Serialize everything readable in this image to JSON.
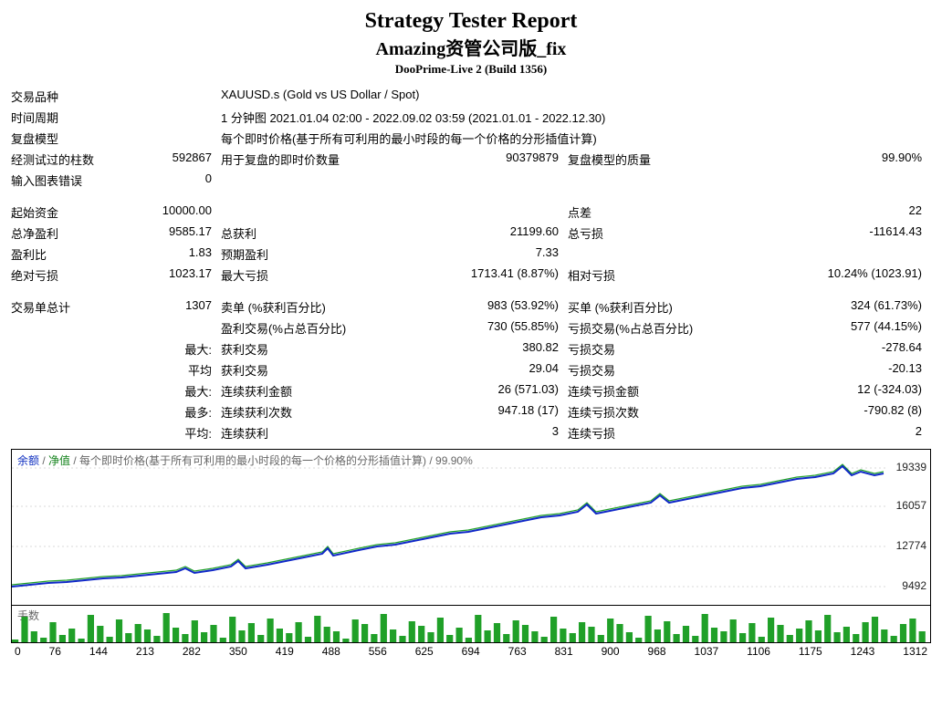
{
  "header": {
    "title": "Strategy Tester Report",
    "subtitle": "Amazing资管公司版_fix",
    "server": "DooPrime-Live 2 (Build 1356)"
  },
  "rows": {
    "symbol_lab": "交易品种",
    "symbol_val": "XAUUSD.s (Gold vs US Dollar / Spot)",
    "period_lab": "时间周期",
    "period_val": "1 分钟图 2021.01.04 02:00 - 2022.09.02 03:59 (2021.01.01 - 2022.12.30)",
    "model_lab": "复盘模型",
    "model_val": "每个即时价格(基于所有可利用的最小时段的每一个价格的分形插值计算)",
    "bars_lab": "经测试过的柱数",
    "bars_val": "592867",
    "ticks_lab": "用于复盘的即时价数量",
    "ticks_val": "90379879",
    "quality_lab": "复盘模型的质量",
    "quality_val": "99.90%",
    "chart_err_lab": "输入图表错误",
    "chart_err_val": "0",
    "init_dep_lab": "起始资金",
    "init_dep_val": "10000.00",
    "spread_lab": "点差",
    "spread_val": "22",
    "net_lab": "总净盈利",
    "net_val": "9585.17",
    "gross_p_lab": "总获利",
    "gross_p_val": "21199.60",
    "gross_l_lab": "总亏损",
    "gross_l_val": "-11614.43",
    "pf_lab": "盈利比",
    "pf_val": "1.83",
    "exp_lab": "预期盈利",
    "exp_val": "7.33",
    "abs_dd_lab": "绝对亏损",
    "abs_dd_val": "1023.17",
    "max_dd_lab": "最大亏损",
    "max_dd_val": "1713.41 (8.87%)",
    "rel_dd_lab": "相对亏损",
    "rel_dd_val": "10.24% (1023.91)",
    "total_tr_lab": "交易单总计",
    "total_tr_val": "1307",
    "short_lab": "卖单 (%获利百分比)",
    "short_val": "983 (53.92%)",
    "long_lab": "买单 (%获利百分比)",
    "long_val": "324 (61.73%)",
    "prof_tr_lab": "盈利交易(%占总百分比)",
    "prof_tr_val": "730 (55.85%)",
    "loss_tr_lab": "亏损交易(%占总百分比)",
    "loss_tr_val": "577 (44.15%)",
    "largest_lab": "最大:",
    "largest_p_lab": "获利交易",
    "largest_p_val": "380.82",
    "largest_l_lab": "亏损交易",
    "largest_l_val": "-278.64",
    "avg_lab": "平均",
    "avg_p_lab": "获利交易",
    "avg_p_val": "29.04",
    "avg_l_lab": "亏损交易",
    "avg_l_val": "-20.13",
    "max_cons_lab": "最大:",
    "max_cons_w_lab": "连续获利金额",
    "max_cons_w_val": "26 (571.03)",
    "max_cons_l_lab": "连续亏损金额",
    "max_cons_l_val": "12 (-324.03)",
    "most_cons_lab": "最多:",
    "most_cons_w_lab": "连续获利次数",
    "most_cons_w_val": "947.18 (17)",
    "most_cons_l_lab": "连续亏损次数",
    "most_cons_l_val": "-790.82 (8)",
    "avg_cons_lab": "平均:",
    "avg_cons_w_lab": "连续获利",
    "avg_cons_w_val": "3",
    "avg_cons_l_lab": "连续亏损",
    "avg_cons_l_val": "2"
  },
  "chart": {
    "legend_balance": "余额",
    "legend_equity": "净值",
    "legend_rest": " / 每个即时价格(基于所有可利用的最小时段的每一个价格的分形插值计算) / 99.90%",
    "y_ticks": [
      "19339",
      "16057",
      "12774",
      "9492"
    ],
    "y_tick_pos": [
      20,
      62,
      106,
      150
    ],
    "line_color": "#1028c8",
    "equity_color": "#20a028",
    "bg": "#ffffff",
    "grid": "#d8d8d8",
    "balance_points": [
      [
        0,
        150
      ],
      [
        20,
        148
      ],
      [
        40,
        146
      ],
      [
        60,
        145
      ],
      [
        80,
        143
      ],
      [
        100,
        141
      ],
      [
        120,
        140
      ],
      [
        140,
        138
      ],
      [
        160,
        136
      ],
      [
        180,
        134
      ],
      [
        190,
        130
      ],
      [
        200,
        135
      ],
      [
        220,
        132
      ],
      [
        240,
        128
      ],
      [
        248,
        122
      ],
      [
        256,
        130
      ],
      [
        280,
        126
      ],
      [
        300,
        122
      ],
      [
        320,
        118
      ],
      [
        340,
        114
      ],
      [
        346,
        108
      ],
      [
        352,
        116
      ],
      [
        380,
        110
      ],
      [
        400,
        106
      ],
      [
        420,
        104
      ],
      [
        440,
        100
      ],
      [
        460,
        96
      ],
      [
        480,
        92
      ],
      [
        500,
        90
      ],
      [
        520,
        86
      ],
      [
        540,
        82
      ],
      [
        560,
        78
      ],
      [
        580,
        74
      ],
      [
        600,
        72
      ],
      [
        620,
        68
      ],
      [
        630,
        60
      ],
      [
        640,
        70
      ],
      [
        660,
        66
      ],
      [
        680,
        62
      ],
      [
        700,
        58
      ],
      [
        710,
        50
      ],
      [
        720,
        58
      ],
      [
        740,
        54
      ],
      [
        760,
        50
      ],
      [
        780,
        46
      ],
      [
        800,
        42
      ],
      [
        820,
        40
      ],
      [
        840,
        36
      ],
      [
        860,
        32
      ],
      [
        880,
        30
      ],
      [
        900,
        26
      ],
      [
        910,
        18
      ],
      [
        920,
        28
      ],
      [
        930,
        24
      ],
      [
        945,
        28
      ],
      [
        955,
        26
      ]
    ],
    "lots_label": "手数",
    "lots_color": "#20a028",
    "lots_points": [
      3,
      28,
      12,
      5,
      22,
      8,
      15,
      4,
      30,
      18,
      6,
      25,
      10,
      20,
      14,
      7,
      32,
      16,
      9,
      24,
      11,
      19,
      5,
      28,
      13,
      21,
      8,
      26,
      15,
      10,
      22,
      6,
      29,
      17,
      12,
      4,
      25,
      20,
      9,
      31,
      14,
      7,
      23,
      18,
      11,
      27,
      8,
      16,
      5,
      30,
      13,
      21,
      9,
      24,
      19,
      12,
      6,
      28,
      15,
      10,
      22,
      17,
      8,
      26,
      20,
      11,
      5,
      29,
      14,
      23,
      9,
      18,
      7,
      31,
      16,
      12,
      25,
      10,
      21,
      6,
      27,
      19,
      8,
      15,
      24,
      13,
      30,
      11,
      17,
      9,
      22,
      28,
      14,
      7,
      20,
      26,
      12
    ],
    "x_ticks": [
      "0",
      "76",
      "144",
      "213",
      "282",
      "350",
      "419",
      "488",
      "556",
      "625",
      "694",
      "763",
      "831",
      "900",
      "968",
      "1037",
      "1106",
      "1175",
      "1243",
      "1312"
    ]
  }
}
